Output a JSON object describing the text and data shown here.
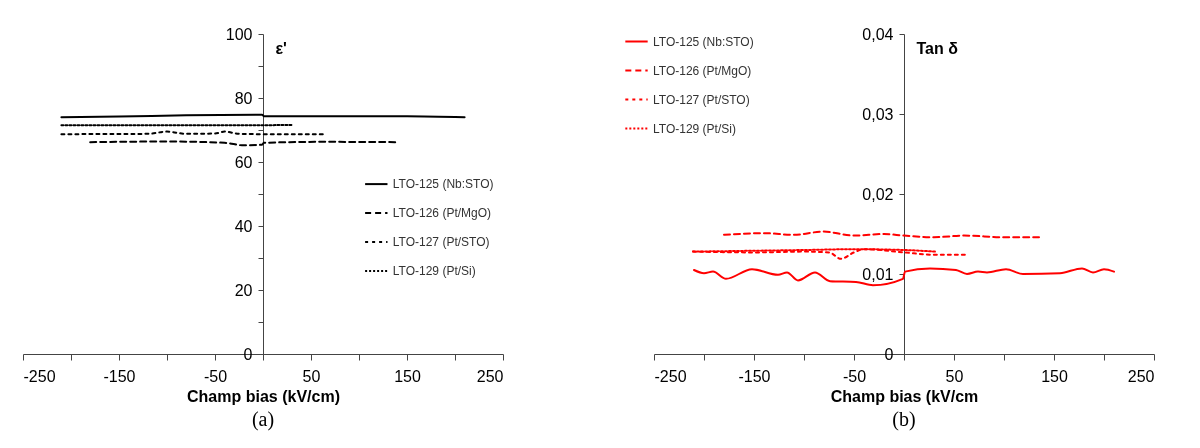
{
  "chart_data": [
    {
      "type": "line",
      "xlabel": "Champ bias (kV/cm)",
      "ylabel": "ε'",
      "annotations": [
        "(a)"
      ],
      "legend": "right",
      "grid": false,
      "xlim": [
        -250,
        250
      ],
      "xticks": [
        {
          "value": -250,
          "label": "-250"
        },
        {
          "value": -200,
          "label": null
        },
        {
          "value": -150,
          "label": "-150"
        },
        {
          "value": -100,
          "label": null
        },
        {
          "value": -50,
          "label": "-50"
        },
        {
          "value": 0,
          "label": null
        },
        {
          "value": 50,
          "label": "50"
        },
        {
          "value": 100,
          "label": null
        },
        {
          "value": 150,
          "label": "150"
        },
        {
          "value": 200,
          "label": null
        },
        {
          "value": 250,
          "label": "250"
        }
      ],
      "ylim": [
        0,
        100
      ],
      "yticks": [
        0,
        {
          "value": 10,
          "label": null
        },
        20,
        {
          "value": 30,
          "label": null
        },
        40,
        {
          "value": 50,
          "label": null
        },
        60,
        {
          "value": 70,
          "label": null
        },
        80,
        {
          "value": 90,
          "label": null
        },
        100
      ],
      "series": [
        {
          "name": "LTO-125 (Nb:STO)",
          "color": "#000000",
          "line_style": "solid",
          "x": [
            -210,
            -150,
            -80,
            -1,
            1,
            150,
            210
          ],
          "values": [
            74.0,
            74.2,
            74.6,
            74.8,
            74.3,
            74.3,
            74.0
          ]
        },
        {
          "name": "LTO-126 (Pt/MgO)",
          "color": "#000000",
          "line_style": "dashed",
          "x": [
            -180,
            -100,
            -40,
            -20,
            -1,
            1,
            60,
            140
          ],
          "values": [
            66.2,
            66.4,
            66.0,
            65.2,
            65.4,
            66.0,
            66.3,
            66.2
          ]
        },
        {
          "name": "LTO-127 (Pt/STO)",
          "color": "#000000",
          "line_style": "dashed",
          "x": [
            -210,
            -120,
            -100,
            -80,
            -50,
            -40,
            -25,
            0,
            65
          ],
          "values": [
            68.7,
            68.8,
            69.5,
            68.8,
            68.9,
            69.5,
            68.8,
            68.7,
            68.7
          ]
        },
        {
          "name": "LTO-129 (Pt/Si)",
          "color": "#000000",
          "line_style": "dotted",
          "x": [
            -210,
            -100,
            0,
            30
          ],
          "values": [
            71.5,
            71.5,
            71.5,
            71.6
          ]
        }
      ]
    },
    {
      "type": "line",
      "xlabel": "Champ bias (kV/cm",
      "ylabel": "Tan δ",
      "annotations": [
        "(b)"
      ],
      "legend": "top left",
      "grid": false,
      "xlim": [
        -250,
        250
      ],
      "xticks": [
        {
          "value": -250,
          "label": "-250"
        },
        {
          "value": -200,
          "label": null
        },
        {
          "value": -150,
          "label": "-150"
        },
        {
          "value": -100,
          "label": null
        },
        {
          "value": -50,
          "label": "-50"
        },
        {
          "value": 0,
          "label": null
        },
        {
          "value": 50,
          "label": "50"
        },
        {
          "value": 100,
          "label": null
        },
        {
          "value": 150,
          "label": "150"
        },
        {
          "value": 200,
          "label": null
        },
        {
          "value": 250,
          "label": "250"
        }
      ],
      "ylim": [
        0,
        0.04
      ],
      "yticks": [
        0,
        {
          "value": 0.01,
          "label": "0,01"
        },
        {
          "value": 0.02,
          "label": "0,02"
        },
        {
          "value": 0.03,
          "label": "0,03"
        },
        {
          "value": 0.04,
          "label": "0,04"
        }
      ],
      "series": [
        {
          "name": "LTO-125 (Nb:STO)",
          "color": "#ff0000",
          "line_style": "solid",
          "x": [
            -210,
            -200,
            -191,
            -178,
            -152,
            -126,
            -117,
            -106,
            -89,
            -74,
            -48,
            -31,
            -1,
            1,
            26,
            52,
            63,
            74,
            83,
            102,
            119,
            156,
            178,
            189,
            200,
            210
          ],
          "values": [
            0.0105,
            0.0101,
            0.0103,
            0.0094,
            0.0106,
            0.0099,
            0.0102,
            0.0092,
            0.0102,
            0.0091,
            0.009,
            0.0086,
            0.0094,
            0.0103,
            0.0107,
            0.0105,
            0.01,
            0.0103,
            0.0102,
            0.0106,
            0.01,
            0.0101,
            0.0107,
            0.0102,
            0.0106,
            0.0103
          ]
        },
        {
          "name": "LTO-126 (Pt/MgO)",
          "color": "#ff0000",
          "line_style": "dashed",
          "x": [
            -180,
            -140,
            -110,
            -81,
            -50,
            -20,
            0,
            30,
            60,
            100,
            135
          ],
          "values": [
            0.0149,
            0.0151,
            0.0149,
            0.0153,
            0.0148,
            0.015,
            0.0148,
            0.0146,
            0.0148,
            0.0146,
            0.0146
          ]
        },
        {
          "name": "LTO-127 (Pt/STO)",
          "color": "#ff0000",
          "line_style": "dashed",
          "x": [
            -211,
            -150,
            -100,
            -75,
            -63,
            -50,
            -40,
            0,
            30,
            61
          ],
          "values": [
            0.0128,
            0.0127,
            0.0128,
            0.0127,
            0.0119,
            0.0127,
            0.0131,
            0.0127,
            0.0124,
            0.0124
          ]
        },
        {
          "name": "LTO-129 (Pt/Si)",
          "color": "#ff0000",
          "line_style": "dotted",
          "x": [
            -211,
            -100,
            -50,
            0,
            31
          ],
          "values": [
            0.0128,
            0.013,
            0.0131,
            0.013,
            0.0128
          ]
        }
      ]
    }
  ]
}
